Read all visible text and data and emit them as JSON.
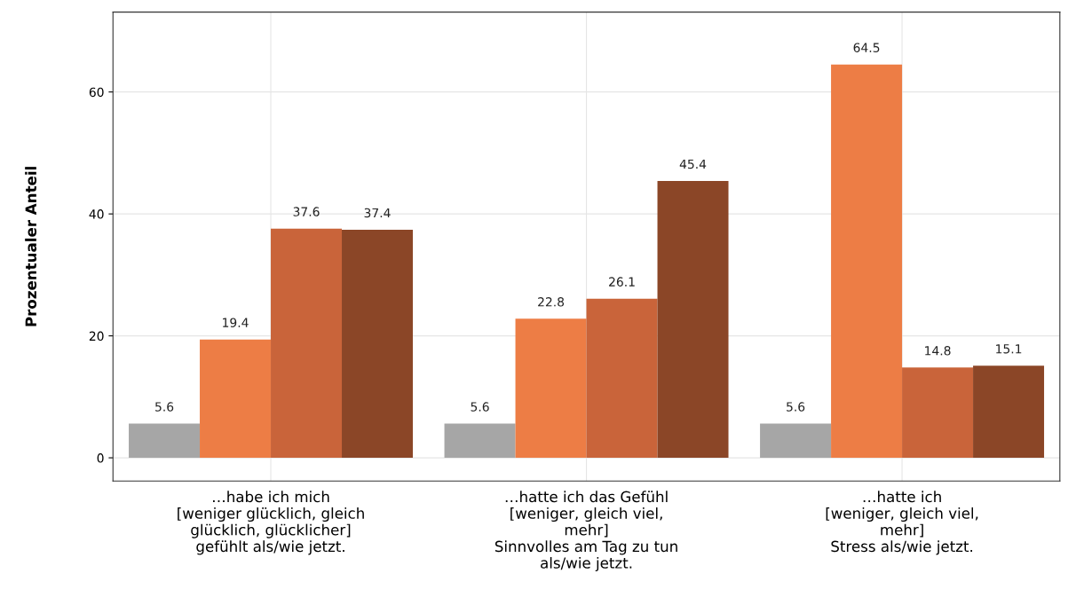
{
  "chart_data": {
    "type": "bar",
    "ylabel": "Prozentualer Anteil",
    "categories": [
      "…habe ich mich\n[weniger glücklich, gleich\nglücklich, glücklicher]\ngefühlt als/wie jetzt.",
      "…hatte ich das Gefühl\n[weniger, gleich viel,\nmehr]\nSinnvolles am Tag zu tun\nals/wie jetzt.",
      "…hatte ich\n[weniger, gleich viel,\nmehr]\nStress als/wie jetzt."
    ],
    "series": [
      {
        "color": "#a6a6a6",
        "values": [
          5.6,
          5.6,
          5.6
        ]
      },
      {
        "color": "#ed7d45",
        "values": [
          19.4,
          22.8,
          64.5
        ]
      },
      {
        "color": "#c9643a",
        "values": [
          37.6,
          26.1,
          14.8
        ]
      },
      {
        "color": "#8b4627",
        "values": [
          37.4,
          45.4,
          15.1
        ]
      }
    ],
    "ylim": [
      -3.8,
      73.1
    ],
    "yticks": [
      0,
      20,
      40,
      60
    ],
    "grid": true,
    "data_labels": true
  }
}
